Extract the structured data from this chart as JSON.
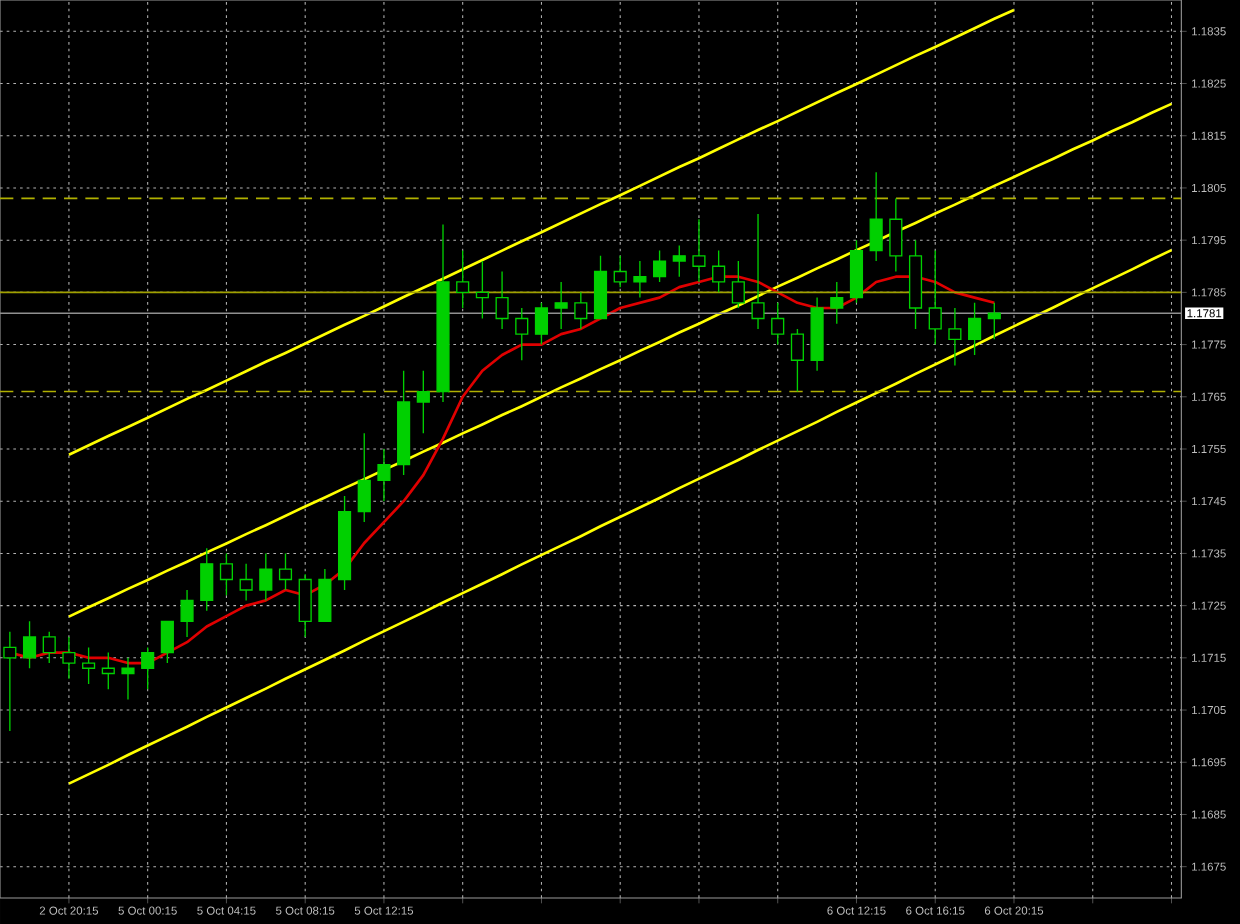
{
  "chart_data": {
    "type": "candlestick",
    "color": "#00d000",
    "categories": [
      null,
      null,
      null,
      "2 Oct 20:15",
      null,
      null,
      null,
      "5 Oct 00:15",
      null,
      null,
      null,
      "5 Oct 04:15",
      null,
      null,
      null,
      "5 Oct 08:15",
      null,
      null,
      null,
      "5 Oct 12:15",
      null,
      null,
      null,
      null,
      null,
      null,
      null,
      null,
      null,
      null,
      null,
      null,
      null,
      null,
      null,
      null,
      null,
      null,
      null,
      null,
      null,
      null,
      null,
      "6 Oct 12:15",
      null,
      null,
      null,
      "6 Oct 16:15",
      null,
      null,
      null,
      "6 Oct 20:15",
      null,
      null,
      null,
      null,
      null,
      null,
      null,
      null
    ],
    "ohlc": [
      [
        1.1717,
        1.172,
        1.1701,
        1.1715
      ],
      [
        1.1715,
        1.1722,
        1.1713,
        1.1719
      ],
      [
        1.1719,
        1.172,
        1.1714,
        1.1716
      ],
      [
        1.1716,
        1.1719,
        1.1711,
        1.1714
      ],
      [
        1.1714,
        1.1717,
        1.171,
        1.1713
      ],
      [
        1.1713,
        1.1716,
        1.1709,
        1.1712
      ],
      [
        1.1712,
        1.1715,
        1.1707,
        1.1713
      ],
      [
        1.1713,
        1.1717,
        1.1709,
        1.1716
      ],
      [
        1.1716,
        1.1722,
        1.1714,
        1.1722
      ],
      [
        1.1722,
        1.1728,
        1.1719,
        1.1726
      ],
      [
        1.1726,
        1.1736,
        1.1724,
        1.1733
      ],
      [
        1.1733,
        1.1735,
        1.1727,
        1.173
      ],
      [
        1.173,
        1.1733,
        1.1726,
        1.1728
      ],
      [
        1.1728,
        1.1735,
        1.1726,
        1.1732
      ],
      [
        1.1732,
        1.1735,
        1.1728,
        1.173
      ],
      [
        1.173,
        1.1731,
        1.1719,
        1.1722
      ],
      [
        1.1722,
        1.1732,
        1.1722,
        1.173
      ],
      [
        1.173,
        1.1746,
        1.1728,
        1.1743
      ],
      [
        1.1743,
        1.1758,
        1.1741,
        1.1749
      ],
      [
        1.1749,
        1.1755,
        1.1745,
        1.1752
      ],
      [
        1.1752,
        1.177,
        1.175,
        1.1764
      ],
      [
        1.1764,
        1.177,
        1.1758,
        1.1766
      ],
      [
        1.1766,
        1.1798,
        1.1764,
        1.1787
      ],
      [
        1.1787,
        1.1793,
        1.1782,
        1.1785
      ],
      [
        1.1785,
        1.1791,
        1.178,
        1.1784
      ],
      [
        1.1784,
        1.1789,
        1.1778,
        1.178
      ],
      [
        1.178,
        1.1782,
        1.1772,
        1.1777
      ],
      [
        1.1777,
        1.1783,
        1.1775,
        1.1782
      ],
      [
        1.1782,
        1.1787,
        1.1778,
        1.1783
      ],
      [
        1.1783,
        1.1785,
        1.1778,
        1.178
      ],
      [
        1.178,
        1.1792,
        1.178,
        1.1789
      ],
      [
        1.1789,
        1.1792,
        1.1786,
        1.1787
      ],
      [
        1.1787,
        1.1791,
        1.1784,
        1.1788
      ],
      [
        1.1788,
        1.1793,
        1.1787,
        1.1791
      ],
      [
        1.1791,
        1.1794,
        1.1788,
        1.1792
      ],
      [
        1.1792,
        1.1799,
        1.1787,
        1.179
      ],
      [
        1.179,
        1.1793,
        1.1785,
        1.1787
      ],
      [
        1.1787,
        1.1791,
        1.1782,
        1.1783
      ],
      [
        1.1783,
        1.18,
        1.1778,
        1.178
      ],
      [
        1.178,
        1.1783,
        1.1775,
        1.1777
      ],
      [
        1.1777,
        1.1778,
        1.1766,
        1.1772
      ],
      [
        1.1772,
        1.1784,
        1.177,
        1.1782
      ],
      [
        1.1782,
        1.1787,
        1.1779,
        1.1784
      ],
      [
        1.1784,
        1.1795,
        1.1783,
        1.1793
      ],
      [
        1.1793,
        1.1808,
        1.1791,
        1.1799
      ],
      [
        1.1799,
        1.1803,
        1.1789,
        1.1792
      ],
      [
        1.1792,
        1.1795,
        1.1778,
        1.1782
      ],
      [
        1.1782,
        1.1793,
        1.1775,
        1.1778
      ],
      [
        1.1778,
        1.1782,
        1.1771,
        1.1776
      ],
      [
        1.1776,
        1.1783,
        1.1773,
        1.178
      ],
      [
        1.178,
        1.1783,
        1.1776,
        1.1781
      ],
      null,
      null,
      null,
      null,
      null,
      null,
      null,
      null,
      null
    ],
    "series": [
      {
        "type": "line",
        "color": "#ffff00",
        "values": [
          null,
          null,
          null,
          1.17539,
          1.17557,
          1.17575,
          1.17592,
          1.1761,
          1.17628,
          1.17646,
          1.17663,
          1.17681,
          1.17699,
          1.17717,
          1.17734,
          1.17752,
          1.1777,
          1.17788,
          1.17805,
          1.17823,
          1.17841,
          1.17859,
          1.17876,
          1.17894,
          1.17912,
          1.1793,
          1.17948,
          1.17965,
          1.17983,
          1.18001,
          1.18019,
          1.18036,
          1.18054,
          1.18072,
          1.1809,
          1.18107,
          1.18125,
          1.18143,
          1.18161,
          1.18178,
          1.18196,
          1.18214,
          1.18232,
          1.18249,
          1.18267,
          1.18285,
          1.18303,
          1.1832,
          1.18338,
          1.18356,
          1.18374,
          1.18391,
          null,
          null,
          null,
          null,
          null,
          null,
          null,
          null
        ]
      },
      {
        "type": "line",
        "color": "#ffff00",
        "values": [
          null,
          null,
          null,
          1.17229,
          1.17247,
          1.17264,
          1.17282,
          1.17299,
          1.17317,
          1.17334,
          1.17352,
          1.17369,
          1.17387,
          1.17404,
          1.17422,
          1.1744,
          1.17457,
          1.17475,
          1.17492,
          1.1751,
          1.17527,
          1.17545,
          1.17562,
          1.1758,
          1.17597,
          1.17615,
          1.17632,
          1.1765,
          1.17668,
          1.17685,
          1.17703,
          1.1772,
          1.17738,
          1.17755,
          1.17773,
          1.1779,
          1.17808,
          1.17825,
          1.17843,
          1.17861,
          1.17878,
          1.17896,
          1.17913,
          1.17931,
          1.17948,
          1.17966,
          1.17983,
          1.18001,
          1.18018,
          1.18036,
          1.18054,
          1.18071,
          1.18089,
          1.18106,
          1.18124,
          1.18141,
          1.18159,
          1.18176,
          1.18194,
          1.18211
        ]
      },
      {
        "type": "line",
        "color": "#ffff00",
        "values": [
          null,
          null,
          null,
          1.16909,
          1.16927,
          1.16945,
          1.16964,
          1.16982,
          1.17,
          1.17018,
          1.17037,
          1.17055,
          1.17073,
          1.17091,
          1.1711,
          1.17128,
          1.17146,
          1.17164,
          1.17183,
          1.17201,
          1.17219,
          1.17237,
          1.17256,
          1.17274,
          1.17292,
          1.1731,
          1.17329,
          1.17347,
          1.17365,
          1.17383,
          1.17402,
          1.1742,
          1.17438,
          1.17456,
          1.17475,
          1.17493,
          1.17511,
          1.17529,
          1.17548,
          1.17566,
          1.17584,
          1.17602,
          1.17621,
          1.17639,
          1.17657,
          1.17675,
          1.17694,
          1.17712,
          1.1773,
          1.17748,
          1.17767,
          1.17785,
          1.17803,
          1.17821,
          1.1784,
          1.17858,
          1.17876,
          1.17894,
          1.17913,
          1.17931
        ]
      },
      {
        "type": "line",
        "color": "#e00000",
        "values": [
          1.1716,
          1.1715,
          1.1716,
          1.1716,
          1.1715,
          1.1715,
          1.1714,
          1.1714,
          1.1716,
          1.1718,
          1.1721,
          1.1723,
          1.1725,
          1.1726,
          1.1728,
          1.1727,
          1.1729,
          1.1732,
          1.1737,
          1.1741,
          1.1745,
          1.175,
          1.1757,
          1.1765,
          1.177,
          1.1773,
          1.1775,
          1.1775,
          1.1777,
          1.1778,
          1.178,
          1.1782,
          1.1783,
          1.1784,
          1.1786,
          1.1787,
          1.1788,
          1.1788,
          1.1787,
          1.1785,
          1.1783,
          1.1782,
          1.1782,
          1.1784,
          1.1787,
          1.1788,
          1.1788,
          1.1787,
          1.1785,
          1.1784,
          1.1783,
          null,
          null,
          null,
          null,
          null,
          null,
          null,
          null,
          null
        ]
      }
    ],
    "ref_lines": [
      {
        "axis": "y",
        "value": 1.1803,
        "color": "#b0b000",
        "line_style": "dashed"
      },
      {
        "axis": "y",
        "value": 1.1785,
        "color": "#a0a000",
        "line_style": "solid"
      },
      {
        "axis": "y",
        "value": 1.1766,
        "color": "#b0b000",
        "line_style": "dashed"
      },
      {
        "axis": "y",
        "value": 1.1781,
        "color": "#909090",
        "line_style": "solid",
        "label": "1.1781"
      }
    ],
    "ylim": [
      1.1669,
      1.1841
    ],
    "yticks": [
      1.1675,
      1.1685,
      1.1695,
      1.1705,
      1.1715,
      1.1725,
      1.1735,
      1.1745,
      1.1755,
      1.1765,
      1.1775,
      1.1785,
      1.1795,
      1.1805,
      1.1815,
      1.1825,
      1.1835
    ],
    "grid": true
  }
}
